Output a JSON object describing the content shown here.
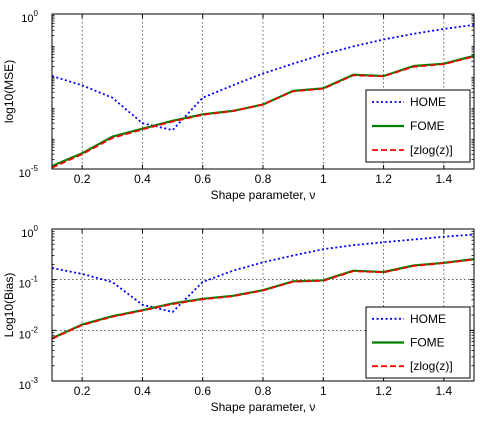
{
  "chart_data": [
    {
      "type": "line",
      "title": "",
      "xlabel": "Shape parameter, ν",
      "ylabel": "log10(MSE)",
      "xlim": [
        0.1,
        1.5
      ],
      "ylim": [
        1e-05,
        1
      ],
      "yscale": "log",
      "grid": true,
      "legend_position": "bottom-right",
      "x_ticks": [
        "0.2",
        "0.4",
        "0.6",
        "0.8",
        "1",
        "1.2",
        "1.4"
      ],
      "y_ticks": [
        {
          "base": "10",
          "exp": "-5"
        },
        {
          "base": "10",
          "exp": "0"
        }
      ],
      "x": [
        0.1,
        0.2,
        0.3,
        0.4,
        0.5,
        0.6,
        0.7,
        0.8,
        0.9,
        1.0,
        1.1,
        1.2,
        1.3,
        1.4,
        1.5
      ],
      "series": [
        {
          "name": "HOME",
          "color": "#0000ff",
          "style": "dotted",
          "values": [
            0.01,
            0.005,
            0.002,
            0.0003,
            0.00018,
            0.002,
            0.005,
            0.012,
            0.025,
            0.05,
            0.09,
            0.15,
            0.23,
            0.33,
            0.45
          ]
        },
        {
          "name": "FOME",
          "color": "#008000",
          "style": "solid",
          "values": [
            1.25e-05,
            3.2e-05,
            0.00011,
            0.0002,
            0.00036,
            0.00058,
            0.00075,
            0.0012,
            0.0033,
            0.004,
            0.011,
            0.01,
            0.021,
            0.025,
            0.045
          ]
        },
        {
          "name": "[zlog(z)]",
          "color": "#ff0000",
          "style": "dashed",
          "values": [
            1.1e-05,
            3e-05,
            0.0001,
            0.00019,
            0.00034,
            0.00056,
            0.00074,
            0.0012,
            0.0032,
            0.0039,
            0.0105,
            0.0098,
            0.02,
            0.024,
            0.043
          ]
        }
      ]
    },
    {
      "type": "line",
      "title": "",
      "xlabel": "Shape parameter, ν",
      "ylabel": "Log10(Bias)",
      "xlim": [
        0.1,
        1.5
      ],
      "ylim": [
        0.001,
        1
      ],
      "yscale": "log",
      "grid": true,
      "legend_position": "bottom-right",
      "x_ticks": [
        "0.2",
        "0.4",
        "0.6",
        "0.8",
        "1",
        "1.2",
        "1.4"
      ],
      "y_ticks": [
        {
          "base": "10",
          "exp": "-3"
        },
        {
          "base": "10",
          "exp": "-2"
        },
        {
          "base": "10",
          "exp": "-1"
        },
        {
          "base": "10",
          "exp": "0"
        }
      ],
      "x": [
        0.1,
        0.2,
        0.3,
        0.4,
        0.5,
        0.6,
        0.7,
        0.8,
        0.9,
        1.0,
        1.1,
        1.2,
        1.3,
        1.4,
        1.5
      ],
      "series": [
        {
          "name": "HOME",
          "color": "#0000ff",
          "style": "dotted",
          "values": [
            0.17,
            0.13,
            0.09,
            0.032,
            0.023,
            0.09,
            0.15,
            0.22,
            0.3,
            0.4,
            0.48,
            0.55,
            0.62,
            0.7,
            0.78
          ]
        },
        {
          "name": "FOME",
          "color": "#008000",
          "style": "solid",
          "values": [
            0.007,
            0.013,
            0.019,
            0.025,
            0.034,
            0.042,
            0.048,
            0.062,
            0.093,
            0.097,
            0.15,
            0.142,
            0.19,
            0.215,
            0.255
          ]
        },
        {
          "name": "[zlog(z)]",
          "color": "#ff0000",
          "style": "dashed",
          "values": [
            0.0068,
            0.0127,
            0.0185,
            0.0245,
            0.033,
            0.041,
            0.047,
            0.061,
            0.091,
            0.095,
            0.147,
            0.14,
            0.187,
            0.212,
            0.25
          ]
        }
      ]
    }
  ]
}
